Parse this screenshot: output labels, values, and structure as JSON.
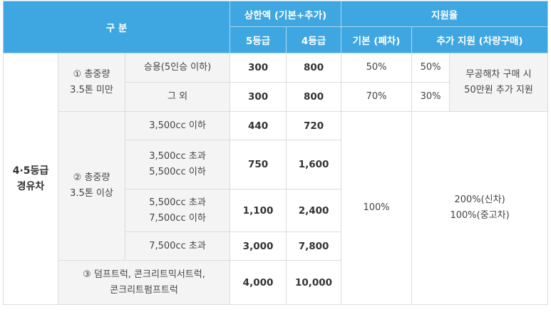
{
  "header": {
    "category": "구 분",
    "limit": "상한액 (기본+추가)",
    "grade5": "5등급",
    "grade4": "4등급",
    "support_rate": "지원율",
    "basic": "기본 (폐차)",
    "additional": "추가 지원 (차량구매)"
  },
  "category": [
    "4·5등급",
    "경유차"
  ],
  "group1": {
    "label": [
      "① 총중량",
      "3.5톤 미만"
    ],
    "rows": [
      {
        "type": [
          "승용(5인승 이하)"
        ],
        "g5": "300",
        "g4": "800",
        "basic": "50%",
        "add": "50%"
      },
      {
        "type": [
          "그 외"
        ],
        "g5": "300",
        "g4": "800",
        "basic": "70%",
        "add": "30%"
      }
    ],
    "extra": [
      "무공해차 구매 시",
      "50만원 추가 지원"
    ]
  },
  "group2": {
    "label": [
      "② 총중량",
      "3.5톤 이상"
    ],
    "rows": [
      {
        "type": [
          "3,500cc 이하"
        ],
        "g5": "440",
        "g4": "720"
      },
      {
        "type": [
          "3,500cc 초과",
          "5,500cc 이하"
        ],
        "g5": "750",
        "g4": "1,600"
      },
      {
        "type": [
          "5,500cc 초과",
          "7,500cc 이하"
        ],
        "g5": "1,100",
        "g4": "2,400"
      },
      {
        "type": [
          "7,500cc 초과"
        ],
        "g5": "3,000",
        "g4": "7,800"
      }
    ]
  },
  "group3": {
    "label": [
      "③ 덤프트럭, 콘크리트믹서트럭,",
      "콘크리트펌프트럭"
    ],
    "g5": "4,000",
    "g4": "10,000"
  },
  "basic_rest": "100%",
  "add_rest": [
    "200%(신차)",
    "100%(중고차)"
  ]
}
